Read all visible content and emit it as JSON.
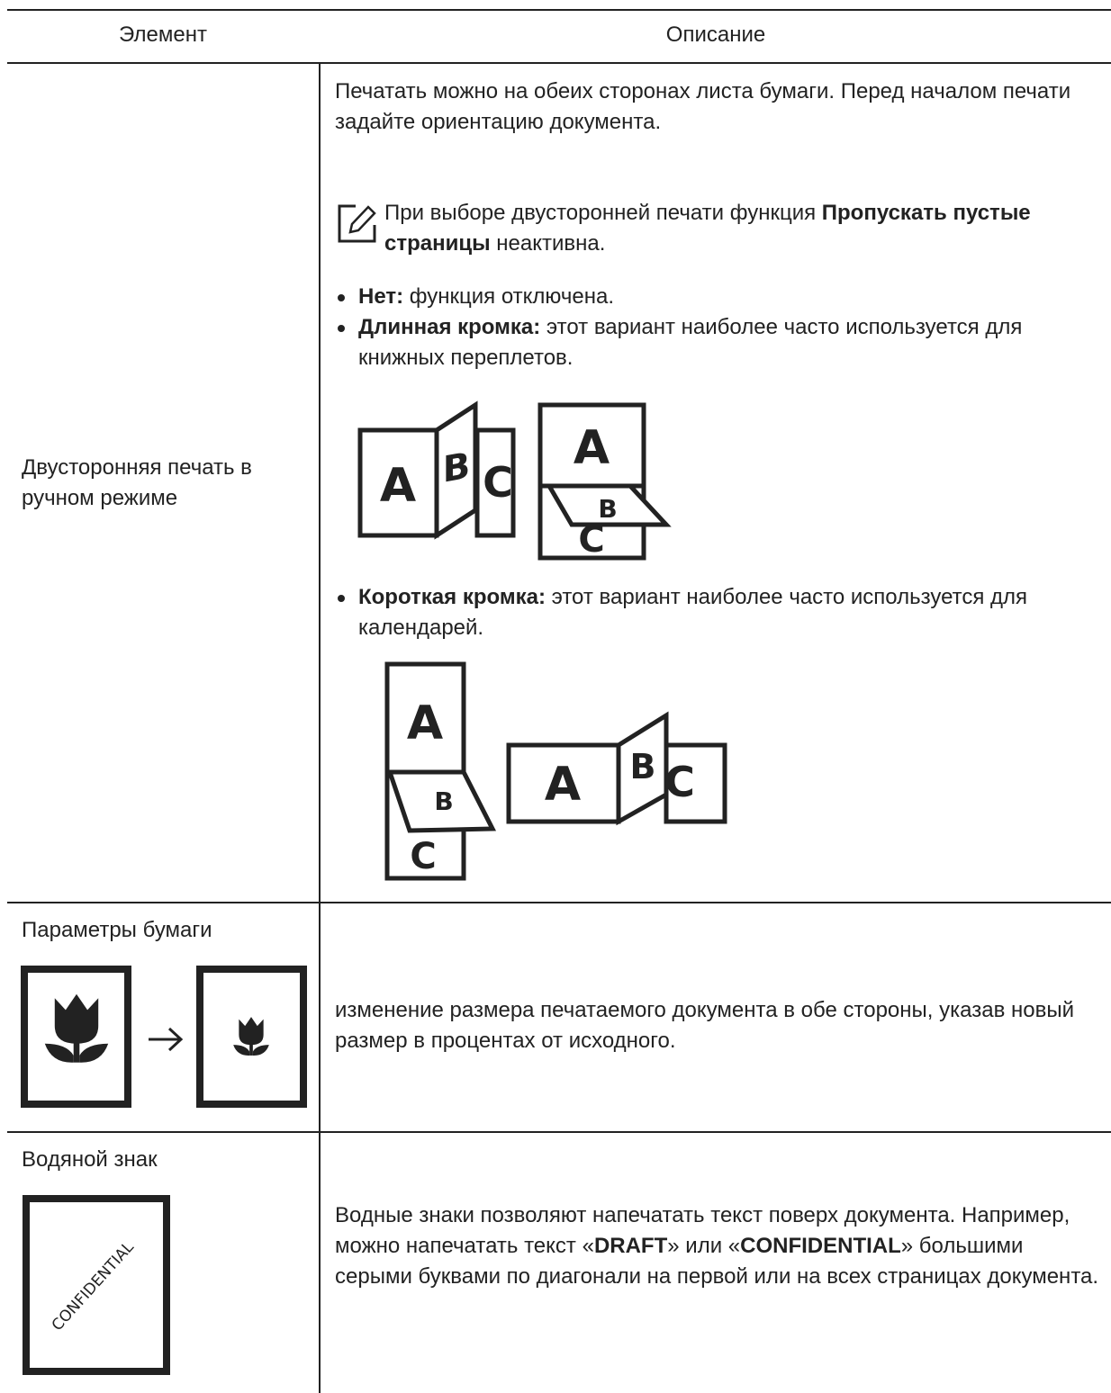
{
  "header": [
    "Элемент",
    "Описание"
  ],
  "rows": [
    {
      "item": "Двусторонняя печать в ручном режиме",
      "intro": "Печатать можно на обеих сторонах листа бумаги. Перед началом печати задайте ориентацию документа.",
      "note": [
        "При выборе двусторонней печати функция ",
        "Пропускать пустые страницы",
        " неактивна."
      ],
      "bullets": [
        {
          "term": "Нет:",
          "text": " функция отключена."
        },
        {
          "term": "Длинная кромка:",
          "text": " этот вариант наиболее часто используется для книжных переплетов."
        },
        {
          "term": "Короткая кромка:",
          "text": " этот вариант наиболее часто используется для календарей."
        }
      ],
      "figures": [
        [
          "A",
          "B",
          "C",
          "A",
          "B",
          "C"
        ],
        [
          "A",
          "B",
          "C",
          "A",
          "B",
          "C"
        ]
      ]
    },
    {
      "item": "Параметры бумаги",
      "description": "изменение размера печатаемого документа в обе стороны, указав новый размер в процентах от исходного."
    },
    {
      "item": "Водяной знак",
      "icon_text": "CONFIDENTIAL",
      "description": [
        "Водные знаки позволяют напечатать текст поверх документа. Например, можно напечатать текст «",
        "DRAFT",
        "» или «",
        "CONFIDENTIAL",
        "» большими серыми буквами по диагонали на первой или на всех страницах документа."
      ]
    }
  ]
}
